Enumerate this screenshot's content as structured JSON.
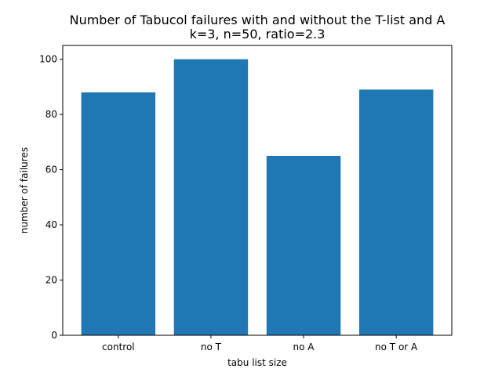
{
  "chart_data": {
    "type": "bar",
    "title_line1": "Number of Tabucol failures with and without the T-list and A",
    "title_line2": "k=3, n=50, ratio=2.3",
    "xlabel": "tabu list size",
    "ylabel": "number of failures",
    "categories": [
      "control",
      "no T",
      "no A",
      "no T or A"
    ],
    "values": [
      88,
      100,
      65,
      89
    ],
    "ylim": [
      0,
      105
    ],
    "yticks": [
      0,
      20,
      40,
      60,
      80,
      100
    ],
    "bar_color": "#1f77b4",
    "grid": false,
    "legend": "none"
  }
}
